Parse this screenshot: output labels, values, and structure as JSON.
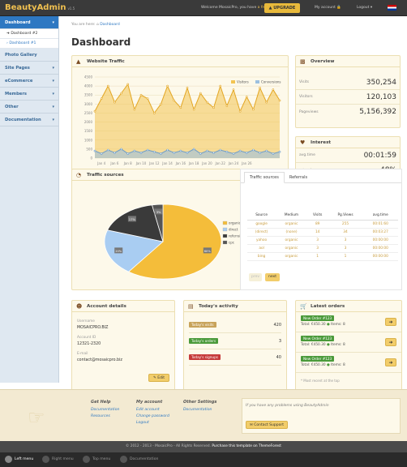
{
  "header": {
    "brand": "BeautyAdmin",
    "version": "v1.5",
    "welcome": "Welcome MosaicPro, you have",
    "free_account": "a free account",
    "upgrade": "UPGRADE",
    "my_account": "My account",
    "logout": "Logout"
  },
  "sidebar": {
    "items": [
      {
        "label": "Dashboard",
        "active": true,
        "sub": [
          "Dashboard #2",
          "Dashboard #1"
        ]
      },
      {
        "label": "Photo Gallery"
      },
      {
        "label": "Site Pages"
      },
      {
        "label": "eCommerce"
      },
      {
        "label": "Members"
      },
      {
        "label": "Other"
      },
      {
        "label": "Documentation"
      }
    ]
  },
  "breadcrumb": {
    "prefix": "You are here:",
    "current": "Dashboard"
  },
  "page_title": "Dashboard",
  "traffic": {
    "title": "Website Traffic",
    "legend": [
      "Visitors",
      "Conversions"
    ]
  },
  "chart_data": {
    "type": "area",
    "x": [
      "Jan 3",
      "Jan 4",
      "Jan 5",
      "Jan 6",
      "Jan 7",
      "Jan 8",
      "Jan 9",
      "Jan 10",
      "Jan 11",
      "Jan 12",
      "Jan 13",
      "Jan 14",
      "Jan 15",
      "Jan 16",
      "Jan 17",
      "Jan 18",
      "Jan 19",
      "Jan 20",
      "Jan 21",
      "Jan 22",
      "Jan 23",
      "Jan 24",
      "Jan 25",
      "Jan 26",
      "Jan 27",
      "Jan 28",
      "Jan 29",
      "Jan 30",
      "Jan 31"
    ],
    "tick_labels": [
      "Jan 4",
      "Jan 6",
      "Jan 8",
      "Jan 10",
      "Jan 12",
      "Jan 14",
      "Jan 16",
      "Jan 18",
      "Jan 20",
      "Jan 22",
      "Jan 24",
      "Jan 26"
    ],
    "yticks": [
      "0",
      "500",
      "1000",
      "1500",
      "2000",
      "2500",
      "3000",
      "3500",
      "4000",
      "4500"
    ],
    "ylim": [
      0,
      4500
    ],
    "series": [
      {
        "name": "Visitors",
        "color": "#f3c452",
        "values": [
          2600,
          3300,
          4000,
          3100,
          3600,
          4100,
          2700,
          3500,
          3300,
          2500,
          3000,
          4000,
          3200,
          2800,
          3900,
          2700,
          3600,
          3100,
          2800,
          4000,
          2900,
          3800,
          2600,
          3400,
          2700,
          3900,
          3100,
          3800,
          3200
        ]
      },
      {
        "name": "Conversions",
        "color": "#9cc0e0",
        "values": [
          400,
          250,
          450,
          300,
          500,
          250,
          400,
          300,
          450,
          350,
          250,
          450,
          300,
          400,
          300,
          500,
          250,
          400,
          300,
          450,
          350,
          250,
          400,
          300,
          450,
          300,
          400,
          250,
          350
        ]
      }
    ],
    "grid": true,
    "legend": "top-right"
  },
  "overview": {
    "title": "Overview",
    "rows": [
      {
        "label": "Visits",
        "value": "350,254"
      },
      {
        "label": "Visitors",
        "value": "120,103"
      },
      {
        "label": "Pageviews",
        "value": "5,156,392"
      }
    ]
  },
  "interest": {
    "title": "Interest",
    "rows": [
      {
        "label": "avg.time",
        "value": "00:01:59"
      },
      {
        "label": "returning",
        "value": "48%"
      }
    ]
  },
  "sources": {
    "title": "Traffic sources",
    "pie": [
      {
        "name": "organic",
        "pct": 60,
        "color": "#f4bd3a"
      },
      {
        "name": "direct",
        "pct": 20,
        "color": "#a9cdf2"
      },
      {
        "name": "referral",
        "pct": 17,
        "color": "#3a3a3a"
      },
      {
        "name": "cpc",
        "pct": 3,
        "color": "#555555"
      }
    ]
  },
  "table": {
    "tabs": [
      "Traffic sources",
      "Referrals"
    ],
    "columns": [
      "Source",
      "Medium",
      "Visits",
      "Pg.Views",
      "avg.time"
    ],
    "rows": [
      [
        "google",
        "organic",
        "89",
        "255",
        "00:01:60"
      ],
      [
        "(direct)",
        "(none)",
        "14",
        "34",
        "00:03:27"
      ],
      [
        "yahoo",
        "organic",
        "3",
        "3",
        "00:00:00"
      ],
      [
        "aol",
        "organic",
        "3",
        "3",
        "00:00:00"
      ],
      [
        "bing",
        "organic",
        "1",
        "1",
        "00:00:00"
      ]
    ],
    "prev": "prev",
    "next": "next"
  },
  "account": {
    "title": "Account details",
    "username_label": "Username",
    "username": "MOSAICPRO.BIZ",
    "id_label": "Account ID",
    "id": "12321-2320",
    "email_label": "E-mail",
    "email": "contact@mosaicpro.biz",
    "edit": "Edit"
  },
  "activity": {
    "title": "Today's activity",
    "rows": [
      {
        "label": "Today's visits",
        "value": "420",
        "color": "#c8a35a"
      },
      {
        "label": "Today's orders",
        "value": "3",
        "color": "#4a9a3a"
      },
      {
        "label": "Today's signups",
        "value": "40",
        "color": "#c63a3a"
      }
    ]
  },
  "orders": {
    "title": "Latest orders",
    "items": [
      {
        "badge": "New Order #123",
        "total": "Total: €450.30",
        "items": "Items: 8"
      },
      {
        "badge": "New Order #123",
        "total": "Total: €450.30",
        "items": "Items: 8"
      },
      {
        "badge": "New Order #123",
        "total": "Total: €450.30",
        "items": "Items: 8"
      }
    ],
    "note": "* Most recent at the top"
  },
  "footer": {
    "help_title": "Get Help",
    "help": [
      "Documentation",
      "Resources"
    ],
    "acct_title": "My account",
    "acct": [
      "Edit account",
      "Change password",
      "Logout"
    ],
    "other_title": "Other Settings",
    "other": [
      "Documentation"
    ],
    "problem": "If you have any problems using BeautyAdmin",
    "contact": "Contact Support"
  },
  "copyright": {
    "text": "© 2012 - 2013 - MosaicPro - All Rights Reserved.",
    "link": "Purchase this template on ThemeForest"
  },
  "bottom_bar": [
    "Left menu",
    "Right menu",
    "Top menu",
    "Documentation"
  ]
}
